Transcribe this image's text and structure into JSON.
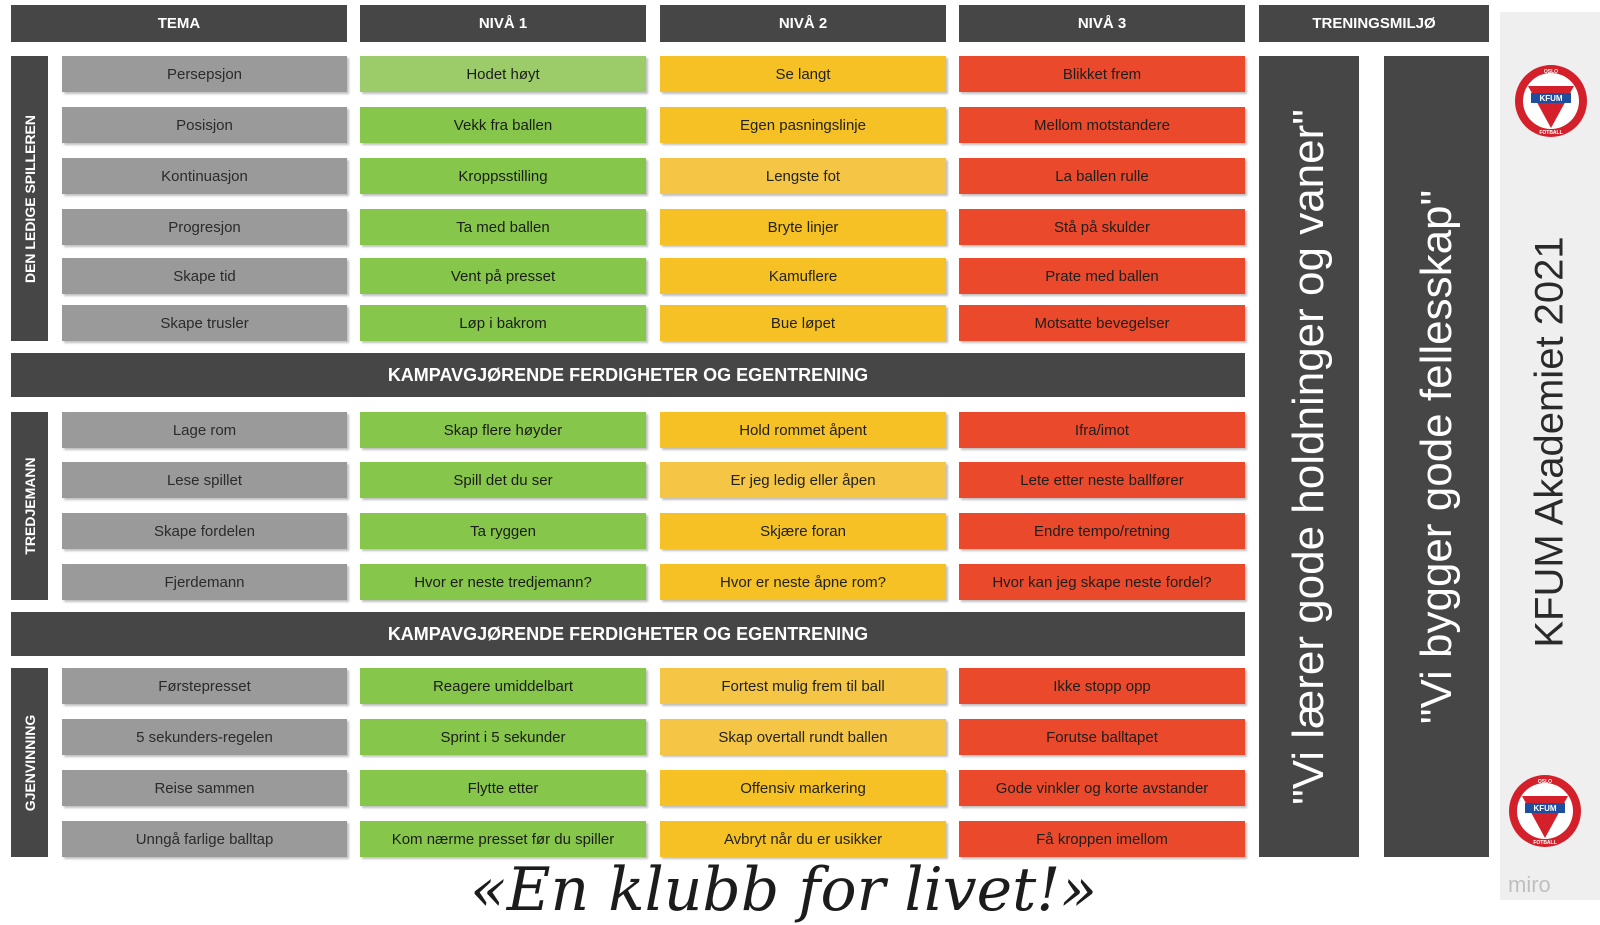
{
  "headers": {
    "tema": "TEMA",
    "niva1": "NIVÅ 1",
    "niva2": "NIVÅ 2",
    "niva3": "NIVÅ 3",
    "treningsmiljo": "TRENINGSMILJØ"
  },
  "sections": [
    {
      "label": "DEN LEDIGE SPILLEREN",
      "rows": [
        {
          "tema": "Persepsjon",
          "n1": "Hodet høyt",
          "n2": "Se langt",
          "n3": "Blikket frem"
        },
        {
          "tema": "Posisjon",
          "n1": "Vekk fra ballen",
          "n2": "Egen pasningslinje",
          "n3": "Mellom motstandere"
        },
        {
          "tema": "Kontinuasjon",
          "n1": "Kroppsstilling",
          "n2": "Lengste fot",
          "n3": "La ballen rulle"
        },
        {
          "tema": "Progresjon",
          "n1": "Ta med ballen",
          "n2": "Bryte linjer",
          "n3": "Stå på skulder"
        },
        {
          "tema": "Skape tid",
          "n1": "Vent på presset",
          "n2": "Kamuflere",
          "n3": "Prate med ballen"
        },
        {
          "tema": "Skape trusler",
          "n1": "Løp i bakrom",
          "n2": "Bue løpet",
          "n3": "Motsatte bevegelser"
        }
      ]
    },
    {
      "label": "TREDJEMANN",
      "rows": [
        {
          "tema": "Lage rom",
          "n1": "Skap flere høyder",
          "n2": "Hold rommet åpent",
          "n3": "Ifra/imot"
        },
        {
          "tema": "Lese spillet",
          "n1": "Spill det du ser",
          "n2": "Er jeg ledig eller åpen",
          "n3": "Lete etter neste ballfører"
        },
        {
          "tema": "Skape fordelen",
          "n1": "Ta ryggen",
          "n2": "Skjære foran",
          "n3": "Endre tempo/retning"
        },
        {
          "tema": "Fjerdemann",
          "n1": "Hvor er neste tredjemann?",
          "n2": "Hvor er neste åpne rom?",
          "n3": "Hvor kan jeg skape neste fordel?"
        }
      ]
    },
    {
      "label": "GJENVINNING",
      "rows": [
        {
          "tema": "Førstepresset",
          "n1": "Reagere umiddelbart",
          "n2": "Fortest mulig frem til ball",
          "n3": "Ikke stopp opp"
        },
        {
          "tema": "5 sekunders-regelen",
          "n1": "Sprint i 5 sekunder",
          "n2": "Skap overtall rundt ballen",
          "n3": "Forutse balltapet"
        },
        {
          "tema": "Reise sammen",
          "n1": "Flytte etter",
          "n2": "Offensiv markering",
          "n3": "Gode vinkler og korte avstander"
        },
        {
          "tema": "Unngå farlige balltap",
          "n1": "Kom nærme presset før du spiller",
          "n2": "Avbryt når du er usikker",
          "n3": "Få kroppen imellom"
        }
      ]
    }
  ],
  "banners": [
    "KAMPAVGJØRENDE FERDIGHETER OG EGENTRENING",
    "KAMPAVGJØRENDE FERDIGHETER OG EGENTRENING"
  ],
  "quotes": {
    "q1": "\"Vi lærer gode holdninger og vaner\"",
    "q2": "\"Vi bygger gode fellesskap\""
  },
  "brand": {
    "title": "KFUM Akademiet 2021",
    "logo_top": "OSLO",
    "logo_mid": "KFUM",
    "logo_bottom": "FOTBALL"
  },
  "motto": "«En klubb for livet!»",
  "watermark": "miro",
  "colors": {
    "dark": "#464646",
    "tema_gray": "#9a9a9a",
    "niva1_green": "#86c64a",
    "niva2_yellow": "#f5c124",
    "niva3_red": "#ea4a2b",
    "logo_red": "#d4202a",
    "logo_blue": "#1f4ea1"
  }
}
